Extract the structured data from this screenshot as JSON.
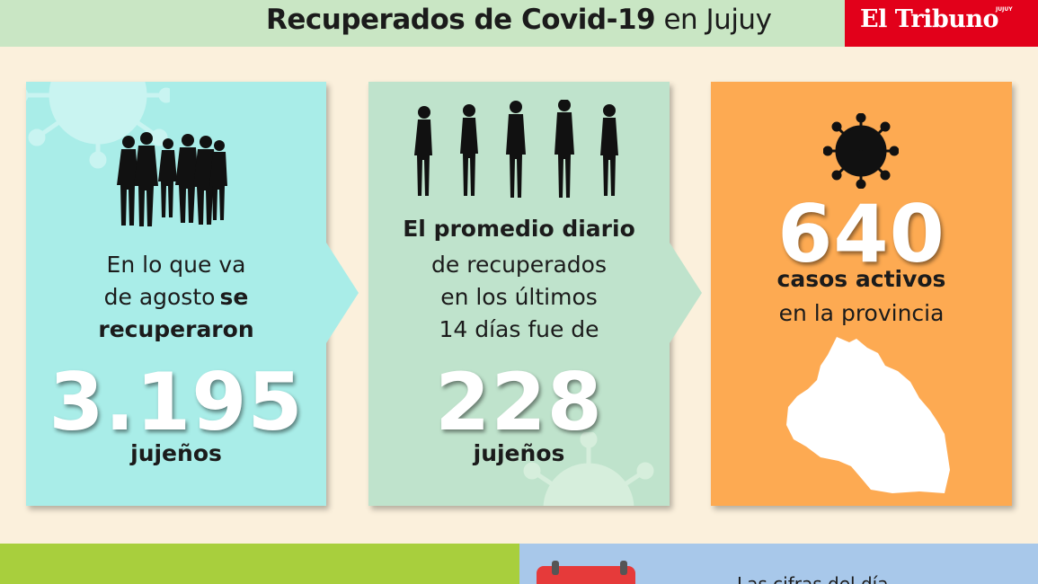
{
  "header": {
    "title_bold": "Recuperados de Covid-19",
    "title_rest": "en Jujuy",
    "brand_name": "El Tribuno",
    "brand_sub": "JUJUY"
  },
  "card1": {
    "line1": "En lo que va",
    "line2_a": "de agosto",
    "line2_b": "se",
    "line3": "recuperaron",
    "number": "3.195",
    "unit": "jujeños"
  },
  "card2": {
    "line1": "El promedio diario",
    "line2": "de recuperados",
    "line3": "en los últimos",
    "line4": "14 días fue de",
    "number": "228",
    "unit": "jujeños"
  },
  "card3": {
    "number": "640",
    "line1": "casos activos",
    "line2": "en la provincia"
  },
  "bottom": {
    "partial_text": "Las cifras del día"
  },
  "colors": {
    "header_bg": "#c9e6c4",
    "brand_red": "#e2001a",
    "card1_bg": "#a9ede8",
    "card2_bg": "#bfe3cc",
    "card3_bg": "#fdaa52",
    "page_bg": "#fbf0dc",
    "bottom_green": "#a8cf3d",
    "bottom_blue": "#a8c8ea"
  },
  "icons": {
    "card1": "people-group-silhouette-icon",
    "card2": "people-queue-silhouette-icon",
    "card3_virus": "coronavirus-icon",
    "card3_map": "jujuy-province-map-icon",
    "bottom": "calendar-icon"
  }
}
